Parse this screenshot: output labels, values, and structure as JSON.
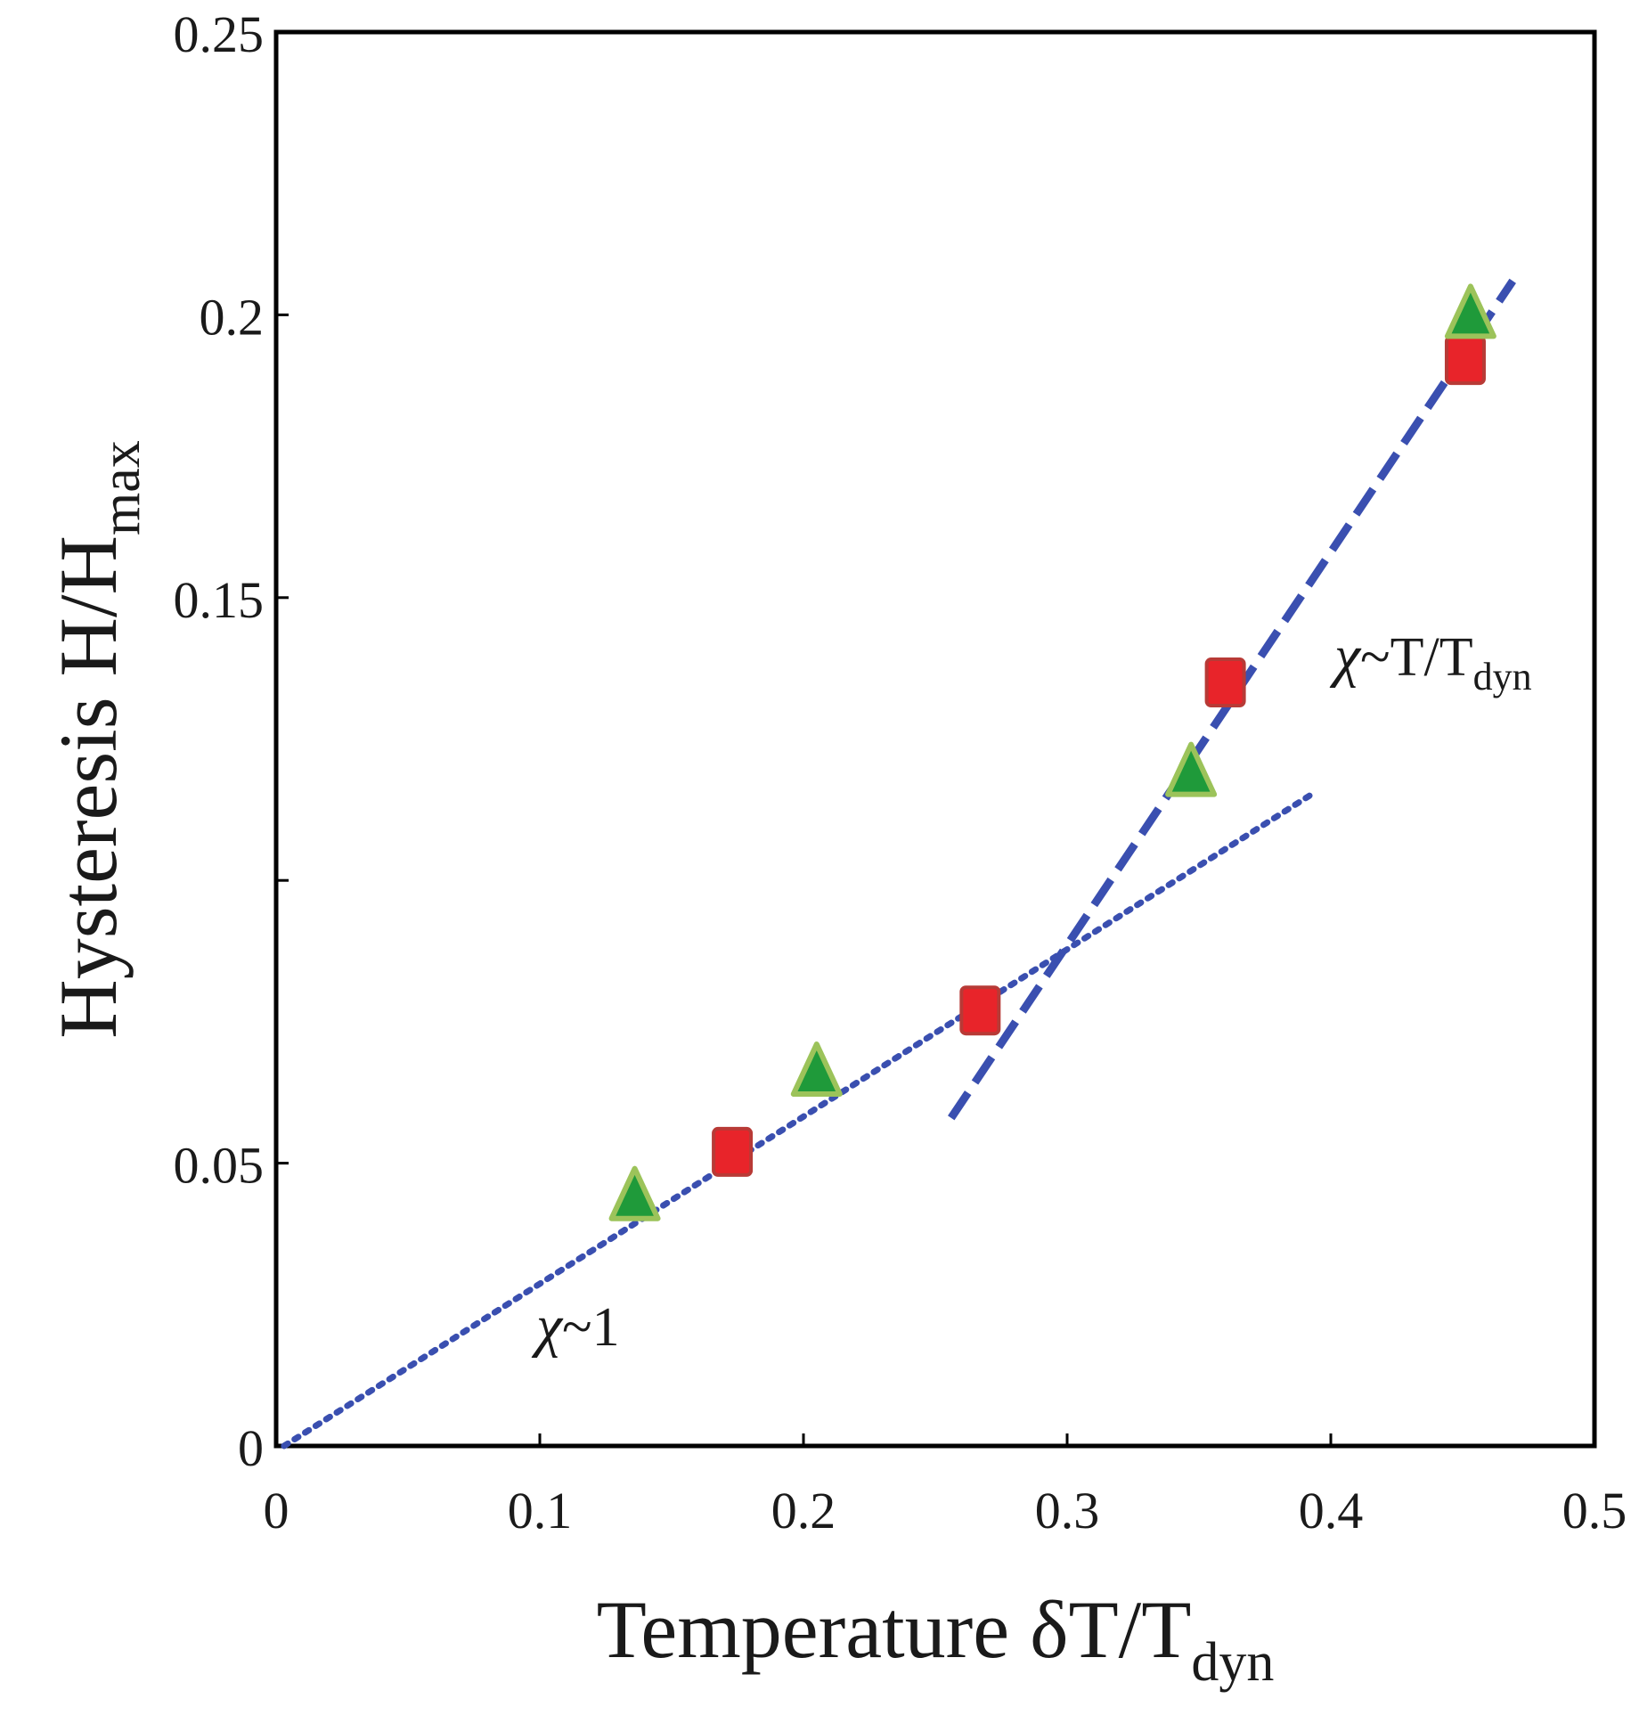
{
  "chart_data": {
    "type": "scatter",
    "title": "",
    "xlabel": {
      "main": "Temperature δT/T",
      "sub": "dyn"
    },
    "ylabel": {
      "main": "Hysteresis H/H",
      "sub": "max"
    },
    "xlim": [
      0,
      0.5
    ],
    "ylim": [
      0,
      0.25
    ],
    "x_ticks": [
      0,
      0.1,
      0.2,
      0.3,
      0.4,
      0.5
    ],
    "x_tick_labels": [
      "0",
      "0.1",
      "0.2",
      "0.3",
      "0.4",
      "0.5"
    ],
    "y_ticks": [
      0,
      0.05,
      0.1,
      0.15,
      0.2,
      0.25
    ],
    "y_tick_labels": [
      "0",
      "0.05",
      "",
      "0.15",
      "0.2",
      "0.25"
    ],
    "grid": false,
    "series": [
      {
        "name": "squares",
        "marker": "square",
        "color": "#e8242a",
        "x": [
          0.173,
          0.267,
          0.36,
          0.451
        ],
        "y": [
          0.052,
          0.077,
          0.135,
          0.192
        ]
      },
      {
        "name": "triangles",
        "marker": "triangle",
        "color": "#1f9a3a",
        "x": [
          0.136,
          0.205,
          0.347,
          0.453
        ],
        "y": [
          0.044,
          0.066,
          0.119,
          0.2
        ]
      }
    ],
    "fit_lines": [
      {
        "name": "chi ~ 1",
        "style": "dotted",
        "color": "#3a4fb0",
        "x": [
          0.003,
          0.392
        ],
        "y": [
          0.0,
          0.115
        ]
      },
      {
        "name": "chi ~ T/Tdyn",
        "style": "dashed",
        "color": "#3a4fb0",
        "x": [
          0.256,
          0.469
        ],
        "y": [
          0.058,
          0.206
        ]
      }
    ],
    "annotations": [
      {
        "chi": "χ",
        "text": "~1",
        "sub": ""
      },
      {
        "chi": "χ",
        "text": "~T/T",
        "sub": "dyn"
      }
    ]
  }
}
